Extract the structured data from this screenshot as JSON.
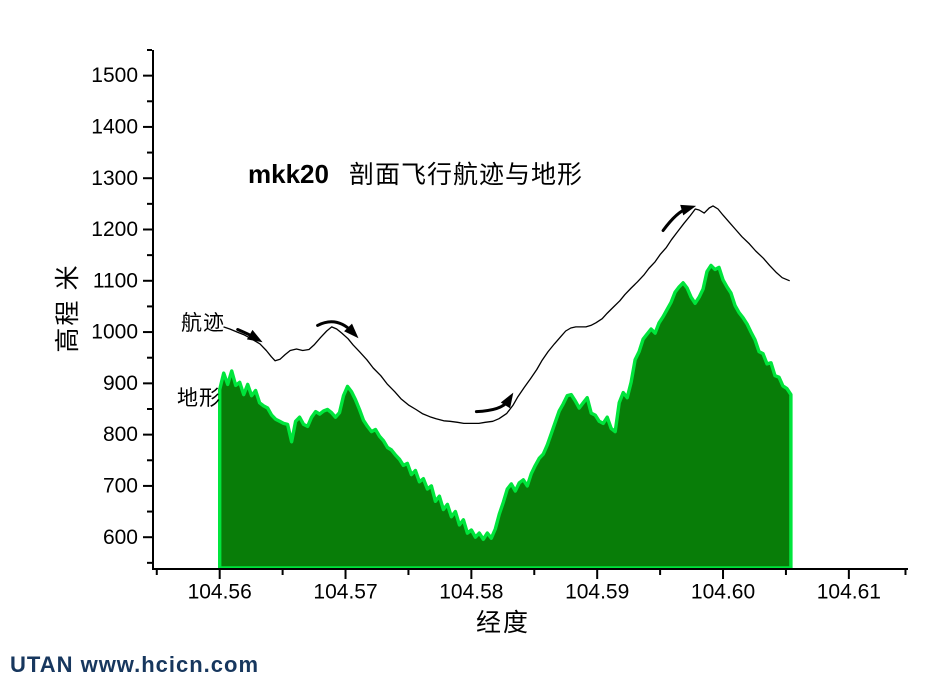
{
  "page": {
    "background": "#FFFFFF"
  },
  "watermark": {
    "text": "UTAN  www.hcicn.com",
    "color": "#17375E"
  },
  "chart_data": {
    "type": "area",
    "title_prefix": "mkk20",
    "title": "剖面飞行航迹与地形",
    "xlabel": "经度",
    "ylabel": "高程 米",
    "xlim": [
      104.5547,
      104.6147
    ],
    "ylim": [
      538,
      1550
    ],
    "grid": false,
    "axis_color": "#000000",
    "x_ticks": [
      {
        "v": 104.56,
        "label": "104.56"
      },
      {
        "v": 104.57,
        "label": "104.57"
      },
      {
        "v": 104.58,
        "label": "104.58"
      },
      {
        "v": 104.59,
        "label": "104.59"
      },
      {
        "v": 104.6,
        "label": "104.60"
      },
      {
        "v": 104.61,
        "label": "104.61"
      }
    ],
    "x_minor_ticks": [
      104.555,
      104.565,
      104.575,
      104.585,
      104.595,
      104.605,
      104.6145
    ],
    "y_ticks": [
      {
        "v": 600,
        "label": "600"
      },
      {
        "v": 700,
        "label": "700"
      },
      {
        "v": 800,
        "label": "800"
      },
      {
        "v": 900,
        "label": "900"
      },
      {
        "v": 1000,
        "label": "1000"
      },
      {
        "v": 1100,
        "label": "1100"
      },
      {
        "v": 1200,
        "label": "1200"
      },
      {
        "v": 1300,
        "label": "1300"
      },
      {
        "v": 1400,
        "label": "1400"
      },
      {
        "v": 1500,
        "label": "1500"
      }
    ],
    "y_minor_ticks": [
      550,
      650,
      750,
      850,
      950,
      1050,
      1150,
      1250,
      1350,
      1450,
      1550
    ],
    "series": [
      {
        "name": "地形",
        "type": "area",
        "fill": "#087D08",
        "stroke": "#00E53C",
        "x_start": 104.56,
        "x_step": 0.00031746,
        "values": [
          888,
          920,
          898,
          924,
          896,
          902,
          878,
          898,
          876,
          886,
          862,
          856,
          852,
          838,
          830,
          826,
          822,
          820,
          786,
          826,
          834,
          820,
          816,
          834,
          845,
          840,
          846,
          849,
          843,
          834,
          843,
          876,
          894,
          884,
          868,
          849,
          828,
          816,
          806,
          810,
          797,
          788,
          775,
          770,
          760,
          752,
          740,
          744,
          722,
          730,
          708,
          714,
          694,
          700,
          670,
          680,
          654,
          664,
          640,
          650,
          624,
          634,
          608,
          614,
          600,
          608,
          596,
          608,
          598,
          616,
          645,
          668,
          694,
          704,
          690,
          706,
          712,
          700,
          724,
          740,
          754,
          762,
          780,
          802,
          824,
          846,
          860,
          876,
          878,
          866,
          852,
          862,
          872,
          842,
          838,
          826,
          822,
          834,
          812,
          806,
          862,
          882,
          872,
          902,
          946,
          962,
          986,
          996,
          1006,
          998,
          1018,
          1030,
          1044,
          1058,
          1078,
          1088,
          1096,
          1086,
          1068,
          1056,
          1068,
          1084,
          1118,
          1130,
          1122,
          1126,
          1102,
          1088,
          1076,
          1052,
          1038,
          1028,
          1016,
          1000,
          985,
          962,
          958,
          938,
          940,
          915,
          912,
          895,
          890,
          878
        ]
      },
      {
        "name": "航迹",
        "type": "line",
        "color": "#000000",
        "points": [
          [
            104.5603,
            1010
          ],
          [
            104.5608,
            1006
          ],
          [
            104.5614,
            1000
          ],
          [
            104.5619,
            995
          ],
          [
            104.5625,
            987
          ],
          [
            104.5632,
            977
          ],
          [
            104.5637,
            964
          ],
          [
            104.5641,
            952
          ],
          [
            104.5644,
            944
          ],
          [
            104.5648,
            947
          ],
          [
            104.5652,
            956
          ],
          [
            104.5656,
            964
          ],
          [
            104.5661,
            967
          ],
          [
            104.5666,
            964
          ],
          [
            104.5671,
            966
          ],
          [
            104.5675,
            975
          ],
          [
            104.568,
            989
          ],
          [
            104.5685,
            1002
          ],
          [
            104.5689,
            1010
          ],
          [
            104.5693,
            1006
          ],
          [
            104.5697,
            998
          ],
          [
            104.5702,
            987
          ],
          [
            104.5706,
            975
          ],
          [
            104.5711,
            962
          ],
          [
            104.5717,
            946
          ],
          [
            104.5722,
            930
          ],
          [
            104.5728,
            915
          ],
          [
            104.5733,
            899
          ],
          [
            104.5739,
            884
          ],
          [
            104.5744,
            870
          ],
          [
            104.575,
            858
          ],
          [
            104.5756,
            849
          ],
          [
            104.5761,
            841
          ],
          [
            104.5767,
            835
          ],
          [
            104.5772,
            831
          ],
          [
            104.5778,
            827
          ],
          [
            104.5783,
            826
          ],
          [
            104.5789,
            824
          ],
          [
            104.5794,
            822
          ],
          [
            104.58,
            822
          ],
          [
            104.5806,
            822
          ],
          [
            104.5811,
            824
          ],
          [
            104.5817,
            826
          ],
          [
            104.5822,
            831
          ],
          [
            104.5828,
            841
          ],
          [
            104.5833,
            857
          ],
          [
            104.5837,
            874
          ],
          [
            104.5842,
            892
          ],
          [
            104.5847,
            909
          ],
          [
            104.5852,
            927
          ],
          [
            104.5856,
            944
          ],
          [
            104.5861,
            962
          ],
          [
            104.5866,
            977
          ],
          [
            104.5871,
            991
          ],
          [
            104.5875,
            1002
          ],
          [
            104.5879,
            1008
          ],
          [
            104.5883,
            1010
          ],
          [
            104.5887,
            1010
          ],
          [
            104.5891,
            1010
          ],
          [
            104.5895,
            1013
          ],
          [
            104.5899,
            1018
          ],
          [
            104.5904,
            1026
          ],
          [
            104.5908,
            1037
          ],
          [
            104.5913,
            1049
          ],
          [
            104.5918,
            1061
          ],
          [
            104.5922,
            1073
          ],
          [
            104.5927,
            1086
          ],
          [
            104.5932,
            1098
          ],
          [
            104.5937,
            1111
          ],
          [
            104.5941,
            1124
          ],
          [
            104.5946,
            1137
          ],
          [
            104.595,
            1151
          ],
          [
            104.5955,
            1165
          ],
          [
            104.5959,
            1180
          ],
          [
            104.5964,
            1196
          ],
          [
            104.5969,
            1212
          ],
          [
            104.5974,
            1227
          ],
          [
            104.5978,
            1240
          ],
          [
            104.5981,
            1238
          ],
          [
            104.5985,
            1232
          ],
          [
            104.5989,
            1242
          ],
          [
            104.5992,
            1246
          ],
          [
            104.5996,
            1240
          ],
          [
            104.6,
            1228
          ],
          [
            104.6005,
            1214
          ],
          [
            104.601,
            1200
          ],
          [
            104.6015,
            1186
          ],
          [
            104.6021,
            1172
          ],
          [
            104.6026,
            1158
          ],
          [
            104.6032,
            1144
          ],
          [
            104.6037,
            1130
          ],
          [
            104.6042,
            1117
          ],
          [
            104.6047,
            1106
          ],
          [
            104.6053,
            1100
          ]
        ]
      }
    ],
    "annotations": {
      "series_labels": [
        {
          "text": "航迹",
          "x": 104.5572,
          "y": 1030
        },
        {
          "text": "地形",
          "x": 104.5577,
          "y": 885
        }
      ],
      "arrows": [
        {
          "tail": [
            104.56143,
            1005
          ],
          "ctrl": [
            104.56238,
            995
          ],
          "tip": [
            104.56341,
            980
          ]
        },
        {
          "tail": [
            104.56778,
            1013
          ],
          "ctrl": [
            104.56929,
            1032
          ],
          "tip": [
            104.57103,
            988
          ]
        },
        {
          "tail": [
            104.5804,
            845
          ],
          "ctrl": [
            104.58246,
            847
          ],
          "tip": [
            104.58333,
            882
          ]
        },
        {
          "tail": [
            104.59524,
            1198
          ],
          "ctrl": [
            104.59635,
            1235
          ],
          "tip": [
            104.59786,
            1246
          ]
        }
      ],
      "arrow_color": "#000000"
    }
  }
}
